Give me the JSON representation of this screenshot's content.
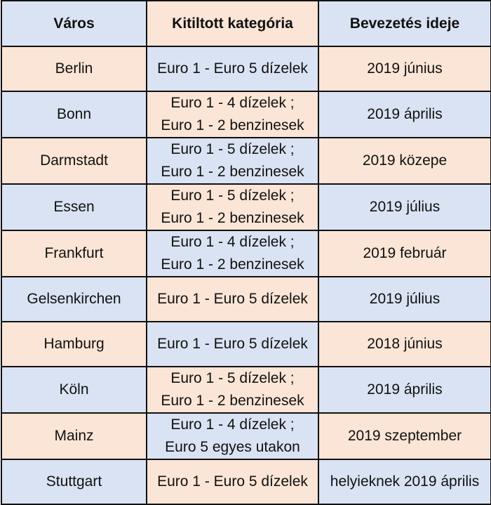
{
  "colors": {
    "blue": "#dae3f3",
    "peach": "#fbe5d6",
    "border": "#111111"
  },
  "headers": [
    "Város",
    "Kitiltott kategória",
    "Bevezetés ideje"
  ],
  "rows": [
    {
      "city": "Berlin",
      "category": [
        "Euro 1 - Euro 5 dízelek"
      ],
      "date": "2019 június"
    },
    {
      "city": "Bonn",
      "category": [
        "Euro 1 - 4 dízelek ;",
        "Euro 1 - 2 benzinesek"
      ],
      "date": "2019 április"
    },
    {
      "city": "Darmstadt",
      "category": [
        "Euro 1 - 5 dízelek ;",
        "Euro 1 - 2 benzinesek"
      ],
      "date": "2019 közepe"
    },
    {
      "city": "Essen",
      "category": [
        "Euro 1 - 5 dízelek ;",
        "Euro 1 - 2 benzinesek"
      ],
      "date": "2019 július"
    },
    {
      "city": "Frankfurt",
      "category": [
        "Euro 1 - 4 dízelek ;",
        "Euro 1 - 2 benzinesek"
      ],
      "date": "2019 február"
    },
    {
      "city": "Gelsenkirchen",
      "category": [
        "Euro 1 - Euro 5 dízelek"
      ],
      "date": "2019 július"
    },
    {
      "city": "Hamburg",
      "category": [
        "Euro 1 - Euro 5 dízelek"
      ],
      "date": "2018 június"
    },
    {
      "city": "Köln",
      "category": [
        "Euro 1 - 5 dízelek ;",
        "Euro 1 - 2 benzinesek"
      ],
      "date": "2019 április"
    },
    {
      "city": "Mainz",
      "category": [
        "Euro 1 - 4 dízelek ;",
        "Euro 5 egyes utakon"
      ],
      "date": "2019 szeptember"
    },
    {
      "city": "Stuttgart",
      "category": [
        "Euro 1 - Euro 5 dízelek"
      ],
      "date": "helyieknek 2019 április"
    }
  ]
}
